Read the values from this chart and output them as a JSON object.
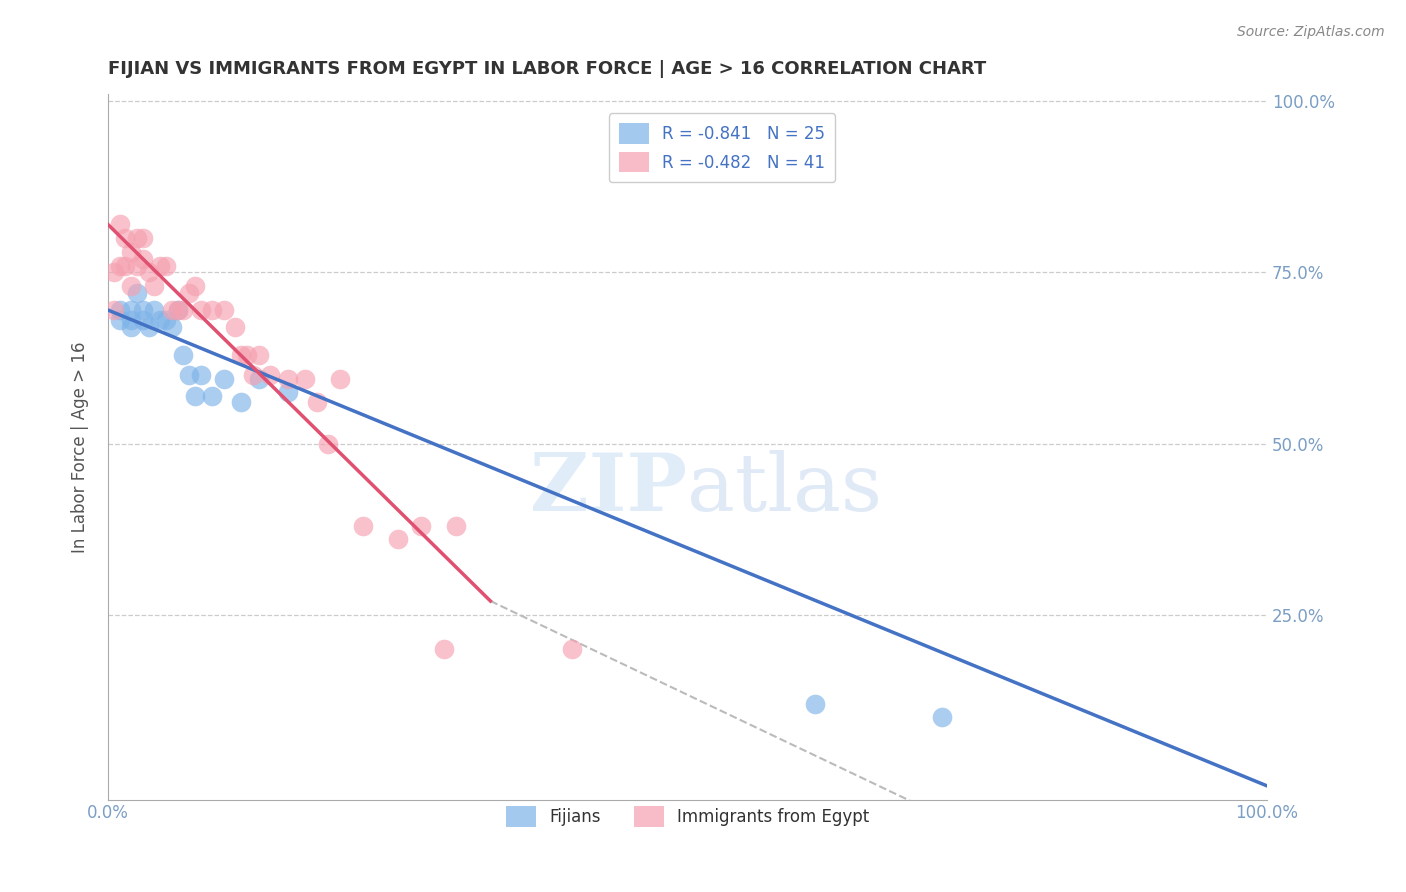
{
  "title": "FIJIAN VS IMMIGRANTS FROM EGYPT IN LABOR FORCE | AGE > 16 CORRELATION CHART",
  "source": "Source: ZipAtlas.com",
  "ylabel": "In Labor Force | Age > 16",
  "xlim": [
    0.0,
    1.0
  ],
  "ylim": [
    0.0,
    1.0
  ],
  "xtick_labels": [
    "0.0%",
    "",
    "",
    "",
    "100.0%"
  ],
  "xtick_vals": [
    0.0,
    0.25,
    0.5,
    0.75,
    1.0
  ],
  "ytick_labels": [
    "25.0%",
    "50.0%",
    "75.0%",
    "100.0%"
  ],
  "ytick_vals": [
    0.25,
    0.5,
    0.75,
    1.0
  ],
  "fijian_color": "#7EB3E8",
  "egypt_color": "#F5A0B0",
  "fijian_label": "Fijians",
  "egypt_label": "Immigrants from Egypt",
  "legend_R_fijian": "R = -0.841",
  "legend_N_fijian": "N = 25",
  "legend_R_egypt": "R = -0.482",
  "legend_N_egypt": "N = 41",
  "fijian_line": [
    [
      0.0,
      0.695
    ],
    [
      1.0,
      0.0
    ]
  ],
  "egypt_line_solid": [
    [
      0.0,
      0.82
    ],
    [
      0.33,
      0.27
    ]
  ],
  "egypt_line_dash": [
    [
      0.33,
      0.27
    ],
    [
      1.0,
      -0.27
    ]
  ],
  "fijian_scatter_x": [
    0.01,
    0.01,
    0.02,
    0.02,
    0.02,
    0.025,
    0.03,
    0.03,
    0.035,
    0.04,
    0.045,
    0.05,
    0.055,
    0.06,
    0.065,
    0.07,
    0.075,
    0.08,
    0.09,
    0.1,
    0.115,
    0.13,
    0.155,
    0.61,
    0.72
  ],
  "fijian_scatter_y": [
    0.695,
    0.68,
    0.695,
    0.68,
    0.67,
    0.72,
    0.695,
    0.68,
    0.67,
    0.695,
    0.68,
    0.68,
    0.67,
    0.695,
    0.63,
    0.6,
    0.57,
    0.6,
    0.57,
    0.595,
    0.56,
    0.595,
    0.575,
    0.12,
    0.1
  ],
  "egypt_scatter_x": [
    0.005,
    0.005,
    0.01,
    0.01,
    0.015,
    0.015,
    0.02,
    0.02,
    0.025,
    0.025,
    0.03,
    0.03,
    0.035,
    0.04,
    0.045,
    0.05,
    0.055,
    0.06,
    0.065,
    0.07,
    0.075,
    0.08,
    0.09,
    0.1,
    0.11,
    0.115,
    0.12,
    0.125,
    0.13,
    0.14,
    0.155,
    0.17,
    0.18,
    0.19,
    0.2,
    0.22,
    0.25,
    0.27,
    0.29,
    0.4,
    0.3
  ],
  "egypt_scatter_y": [
    0.75,
    0.695,
    0.82,
    0.76,
    0.8,
    0.76,
    0.78,
    0.73,
    0.8,
    0.76,
    0.8,
    0.77,
    0.75,
    0.73,
    0.76,
    0.76,
    0.695,
    0.695,
    0.695,
    0.72,
    0.73,
    0.695,
    0.695,
    0.695,
    0.67,
    0.63,
    0.63,
    0.6,
    0.63,
    0.6,
    0.595,
    0.595,
    0.56,
    0.5,
    0.595,
    0.38,
    0.36,
    0.38,
    0.2,
    0.2,
    0.38
  ],
  "watermark_zip": "ZIP",
  "watermark_atlas": "atlas",
  "background_color": "#ffffff",
  "grid_color": "#cccccc",
  "title_color": "#333333",
  "axis_label_color": "#555555",
  "tick_label_color": "#7b9ec4"
}
